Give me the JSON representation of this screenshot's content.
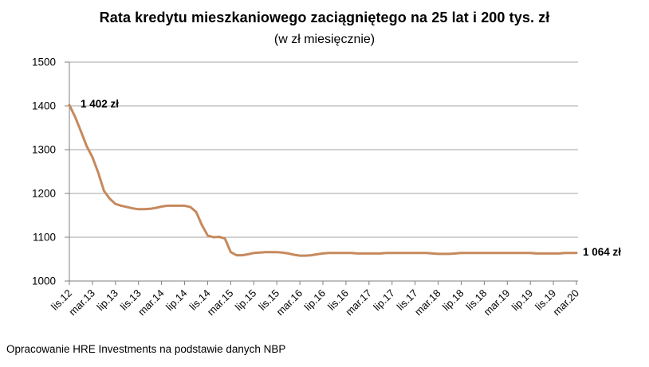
{
  "header": {
    "title": "Rata kredytu mieszkaniowego zaciągniętego na 25 lat i 200 tys. zł",
    "subtitle": "(w zł miesięcznie)"
  },
  "annotations": {
    "start": "1 402 zł",
    "end": "1 064 zł"
  },
  "footer": {
    "source": "Opracowanie HRE Investments na podstawie danych NBP"
  },
  "colors": {
    "line": "#C6895C",
    "grid": "#A6A6A6",
    "axis": "#7F7F7F",
    "text": "#000000"
  },
  "chart_data": {
    "type": "line",
    "title": "Rata kredytu mieszkaniowego zaciągniętego na 25 lat i 200 tys. zł",
    "subtitle": "(w zł miesięcznie)",
    "x_start": "lis.12",
    "x_end": "mar.20",
    "x_interval": "monthly",
    "label_every_n_months": 4,
    "x_tick_labels": [
      "lis.12",
      "mar.13",
      "lip.13",
      "lis.13",
      "mar.14",
      "lip.14",
      "lis.14",
      "mar.15",
      "lip.15",
      "lis.15",
      "mar.16",
      "lip.16",
      "lis.16",
      "mar.17",
      "lip.17",
      "lis.17",
      "mar.18",
      "lip.18",
      "lis.18",
      "mar.19",
      "lip.19",
      "lis.19",
      "mar.20"
    ],
    "ylim": [
      1000,
      1500
    ],
    "yticks": [
      1000,
      1100,
      1200,
      1300,
      1400,
      1500
    ],
    "grid": "horizontal",
    "legend": "none",
    "values": [
      1402,
      1375,
      1342,
      1308,
      1283,
      1248,
      1206,
      1188,
      1176,
      1172,
      1169,
      1166,
      1164,
      1164,
      1165,
      1167,
      1170,
      1172,
      1172,
      1172,
      1172,
      1169,
      1158,
      1128,
      1104,
      1100,
      1101,
      1097,
      1066,
      1059,
      1059,
      1061,
      1064,
      1065,
      1066,
      1066,
      1066,
      1065,
      1063,
      1060,
      1058,
      1058,
      1059,
      1061,
      1063,
      1064,
      1064,
      1064,
      1064,
      1064,
      1063,
      1063,
      1063,
      1063,
      1063,
      1064,
      1064,
      1064,
      1064,
      1064,
      1064,
      1064,
      1064,
      1063,
      1062,
      1062,
      1062,
      1063,
      1064,
      1064,
      1064,
      1064,
      1064,
      1064,
      1064,
      1064,
      1064,
      1064,
      1064,
      1064,
      1064,
      1063,
      1063,
      1063,
      1063,
      1063,
      1064,
      1064,
      1064
    ],
    "data_labels": {
      "first_point": "1 402 zł",
      "last_point": "1 064 zł"
    }
  }
}
